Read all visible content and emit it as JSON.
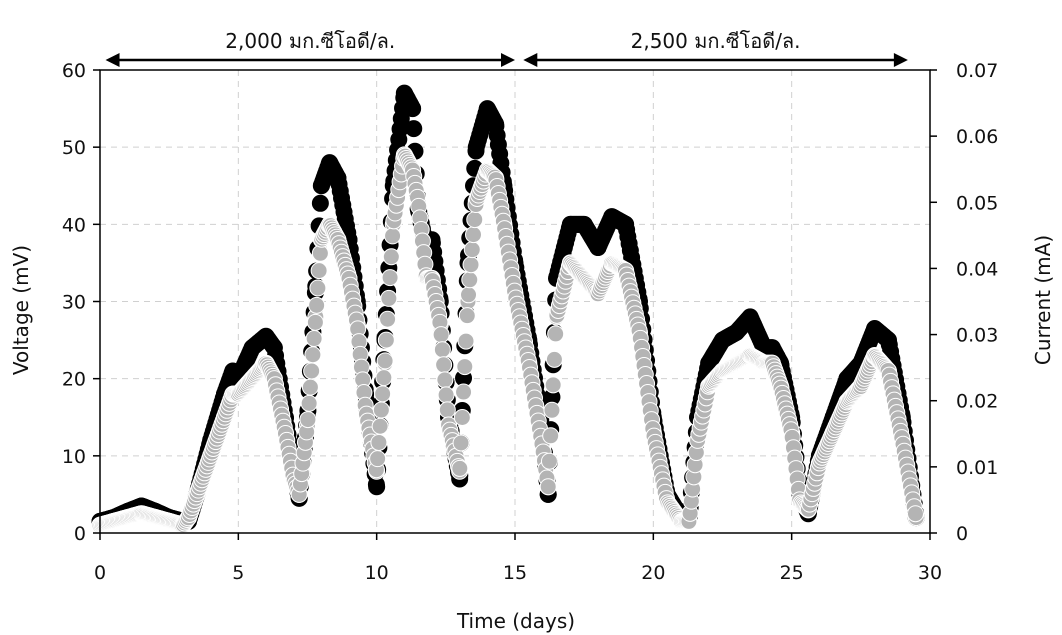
{
  "chart_data": {
    "type": "scatter",
    "xlabel": "Time (days)",
    "ylabel": "Voltage (mV)",
    "y2label": "Current (mA)",
    "xlim": [
      0,
      30
    ],
    "ylim": [
      0,
      60
    ],
    "y2lim": [
      0,
      0.07
    ],
    "xticks": [
      "0",
      "5",
      "10",
      "15",
      "20",
      "25",
      "30"
    ],
    "yticks": [
      "0",
      "10",
      "20",
      "30",
      "40",
      "50",
      "60"
    ],
    "y2ticks": [
      "0",
      "0.01",
      "0.02",
      "0.03",
      "0.04",
      "0.05",
      "0.06",
      "0.07"
    ],
    "grid": true,
    "annotations": [
      {
        "text": "2,000 มก.ซีโอดี/ล.",
        "x_start": 0.2,
        "x_end": 15.0
      },
      {
        "text": "2,500 มก.ซีโอดี/ล.",
        "x_start": 15.3,
        "x_end": 29.2
      }
    ],
    "series": [
      {
        "axis": "left",
        "color": "#000000",
        "x": [
          0,
          0.5,
          1,
          1.5,
          2,
          2.5,
          3,
          3.2,
          3.5,
          4,
          4.5,
          4.8,
          5,
          5.5,
          6,
          6.3,
          6.7,
          7,
          7.2,
          7.5,
          7.8,
          8,
          8.3,
          8.6,
          9,
          9.3,
          9.6,
          10,
          10.3,
          10.6,
          11,
          11.3,
          11.5,
          11.8,
          12,
          12.3,
          12.6,
          13,
          13.3,
          13.6,
          14,
          14.3,
          14.6,
          15,
          15.5,
          16,
          16.2,
          16.5,
          17,
          17.5,
          18,
          18.5,
          19,
          19.5,
          20,
          20.5,
          21,
          21.3,
          21.6,
          22,
          22.5,
          23,
          23.5,
          24,
          24.3,
          24.6,
          25,
          25.3,
          25.6,
          26,
          26.5,
          27,
          27.5,
          28,
          28.5,
          29,
          29.5
        ],
        "y": [
          1.5,
          2,
          2.8,
          3.5,
          2.8,
          2,
          1.5,
          1.5,
          5,
          12,
          18,
          21,
          20,
          24,
          25.5,
          24,
          15,
          8,
          4.5,
          15,
          32,
          45,
          48,
          46,
          38,
          30,
          18,
          6,
          25,
          45,
          57,
          55,
          42,
          37,
          38,
          30,
          15,
          7,
          35,
          50,
          55,
          53,
          45,
          35,
          25,
          13,
          5,
          33,
          40,
          40,
          37,
          41,
          40,
          30,
          15,
          5,
          2,
          2,
          15,
          22,
          25,
          26,
          28,
          24,
          24,
          22,
          15,
          5,
          2.5,
          10,
          15,
          20,
          22,
          26.5,
          25,
          15,
          2
        ]
      },
      {
        "axis": "left",
        "color": "#b4b4b4",
        "x": [
          0,
          0.5,
          1,
          1.5,
          2,
          2.5,
          3,
          3.2,
          3.5,
          4,
          4.5,
          4.8,
          5,
          5.5,
          6,
          6.3,
          6.7,
          7,
          7.2,
          7.5,
          7.8,
          8,
          8.3,
          8.6,
          9,
          9.3,
          9.6,
          10,
          10.3,
          10.6,
          11,
          11.3,
          11.5,
          11.8,
          12,
          12.3,
          12.6,
          13,
          13.3,
          13.6,
          14,
          14.3,
          14.6,
          15,
          15.5,
          16,
          16.2,
          16.5,
          17,
          17.5,
          18,
          18.5,
          19,
          19.5,
          20,
          20.5,
          21,
          21.3,
          21.6,
          22,
          22.5,
          23,
          23.5,
          24,
          24.3,
          24.6,
          25,
          25.3,
          25.6,
          26,
          26.5,
          27,
          27.5,
          28,
          28.5,
          29,
          29.5
        ],
        "y": [
          1,
          1.5,
          2,
          2.5,
          2,
          1.5,
          1,
          2,
          5,
          10,
          15,
          18,
          18,
          20,
          22,
          20,
          13,
          7,
          5,
          14,
          28,
          38,
          40,
          38,
          33,
          27,
          16,
          8,
          22,
          40,
          49,
          47,
          43,
          33,
          33,
          27,
          14,
          8,
          30,
          43,
          47,
          46,
          40,
          31,
          22,
          11,
          6,
          28,
          35,
          33,
          31,
          35,
          34,
          26,
          13,
          4,
          1.5,
          1.5,
          12,
          19,
          21,
          22,
          23,
          22,
          22,
          19,
          13,
          4,
          3,
          9,
          13,
          17,
          19,
          23,
          21,
          12,
          2
        ]
      }
    ]
  }
}
